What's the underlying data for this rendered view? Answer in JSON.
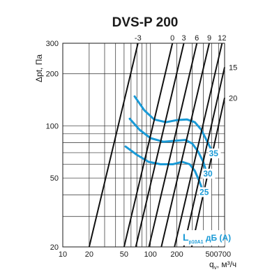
{
  "chart_data": {
    "type": "line",
    "title": "DVS-P 200",
    "xlabel": "q",
    "xlabel_sub": "v",
    "xlabel_unit": ", м³/ч",
    "ylabel": "Δpt, Па",
    "xscale": "log",
    "yscale": "log",
    "xlim": [
      10,
      700
    ],
    "ylim": [
      20,
      300
    ],
    "x_ticks": [
      "10",
      "20",
      "50",
      "100",
      "200",
      "500",
      "700"
    ],
    "x_tick_values": [
      10,
      20,
      50,
      100,
      200,
      500,
      700
    ],
    "y_ticks": [
      "20",
      "50",
      "100",
      "200",
      "300"
    ],
    "y_tick_values": [
      20,
      50,
      100,
      200,
      300
    ],
    "grid": true,
    "colors": {
      "sound": "#1a9ad6",
      "setting": "#111111",
      "grid": "#2a2a2a"
    },
    "setting_lines": [
      {
        "label": "-3",
        "points": [
          [
            20,
            20
          ],
          [
            72,
            300
          ]
        ]
      },
      {
        "label": "0",
        "points": [
          [
            50,
            20
          ],
          [
            178,
            300
          ]
        ]
      },
      {
        "label": "3",
        "points": [
          [
            68,
            20
          ],
          [
            240,
            300
          ]
        ]
      },
      {
        "label": "6",
        "points": [
          [
            96,
            20
          ],
          [
            338,
            300
          ]
        ]
      },
      {
        "label": "9",
        "points": [
          [
            133,
            20
          ],
          [
            468,
            300
          ]
        ]
      },
      {
        "label": "12",
        "points": [
          [
            188,
            20
          ],
          [
            655,
            300
          ]
        ]
      },
      {
        "label": "15",
        "points": [
          [
            240,
            20
          ],
          [
            700,
            218
          ]
        ]
      },
      {
        "label": "20",
        "points": [
          [
            295,
            20
          ],
          [
            700,
            145
          ]
        ]
      }
    ],
    "sound_series": [
      {
        "name": "35",
        "points": [
          [
            66,
            148
          ],
          [
            85,
            123
          ],
          [
            110,
            109
          ],
          [
            150,
            105
          ],
          [
            200,
            108
          ],
          [
            260,
            109
          ],
          [
            320,
            105
          ],
          [
            380,
            95
          ],
          [
            440,
            82
          ],
          [
            500,
            72
          ]
        ]
      },
      {
        "name": "30",
        "points": [
          [
            58,
            110
          ],
          [
            75,
            95
          ],
          [
            100,
            85
          ],
          [
            140,
            81
          ],
          [
            190,
            82
          ],
          [
            250,
            83
          ],
          [
            300,
            79
          ],
          [
            350,
            71
          ],
          [
            400,
            62
          ],
          [
            430,
            55
          ]
        ]
      },
      {
        "name": "25",
        "points": [
          [
            52,
            76
          ],
          [
            70,
            68
          ],
          [
            95,
            62
          ],
          [
            130,
            60
          ],
          [
            180,
            60
          ],
          [
            230,
            62
          ],
          [
            280,
            60
          ],
          [
            320,
            55
          ],
          [
            360,
            48
          ],
          [
            390,
            43
          ]
        ]
      }
    ],
    "sound_unit_label": "L",
    "sound_unit_sub": "p10A1",
    "sound_unit_text": " дБ (А)"
  }
}
